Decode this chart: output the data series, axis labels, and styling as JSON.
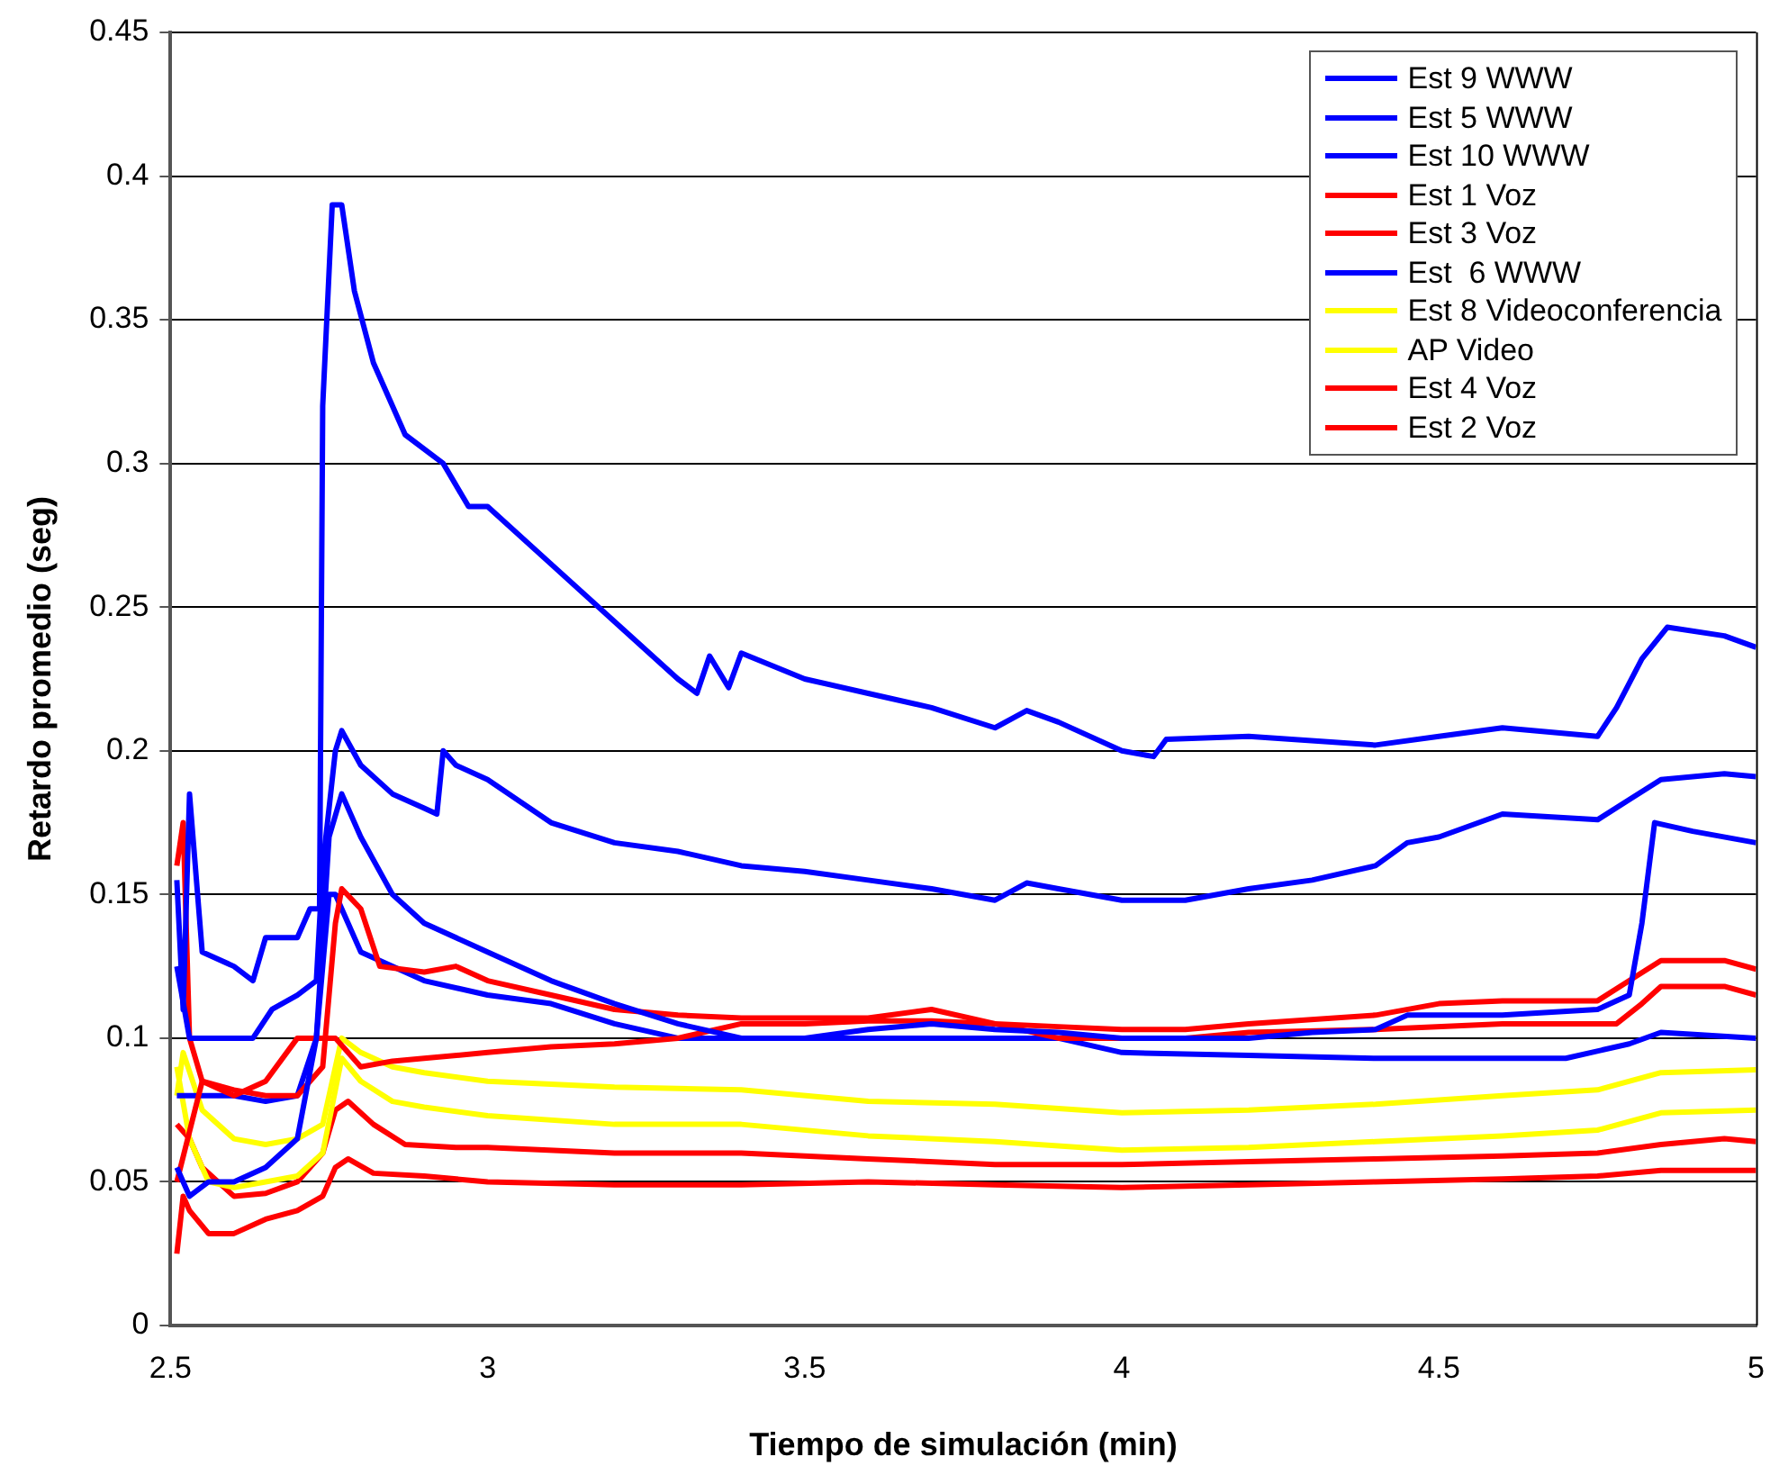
{
  "chart_data": {
    "type": "line",
    "xlabel": "Tiempo de simulación (min)",
    "ylabel": "Retardo promedio (seg)",
    "xlim": [
      2.5,
      5
    ],
    "xticks": [
      2.5,
      3,
      3.5,
      4,
      4.5,
      5
    ],
    "ylim": [
      0,
      0.45
    ],
    "yticks": [
      0,
      0.05,
      0.1,
      0.15,
      0.2,
      0.25,
      0.3,
      0.35,
      0.4,
      0.45
    ],
    "grid": "y",
    "legend": "top right",
    "marker": "none",
    "line_style": "solid",
    "series": [
      {
        "name": "Est 9 WWW",
        "color": "#0000ff",
        "x": [
          2.51,
          2.52,
          2.53,
          2.55,
          2.6,
          2.63,
          2.65,
          2.7,
          2.72,
          2.735,
          2.74,
          2.755,
          2.77,
          2.79,
          2.82,
          2.87,
          2.93,
          2.97,
          3.0,
          3.1,
          3.2,
          3.3,
          3.33,
          3.35,
          3.38,
          3.4,
          3.5,
          3.6,
          3.7,
          3.8,
          3.85,
          3.9,
          4.0,
          4.05,
          4.07,
          4.2,
          4.4,
          4.5,
          4.6,
          4.75,
          4.78,
          4.82,
          4.86,
          4.95,
          5
        ],
        "values": [
          0.155,
          0.11,
          0.185,
          0.13,
          0.125,
          0.12,
          0.135,
          0.135,
          0.145,
          0.145,
          0.32,
          0.39,
          0.39,
          0.36,
          0.335,
          0.31,
          0.3,
          0.285,
          0.285,
          0.265,
          0.245,
          0.225,
          0.22,
          0.233,
          0.222,
          0.234,
          0.225,
          0.22,
          0.215,
          0.208,
          0.214,
          0.21,
          0.2,
          0.198,
          0.204,
          0.205,
          0.202,
          0.205,
          0.208,
          0.205,
          0.215,
          0.232,
          0.243,
          0.24,
          0.236
        ]
      },
      {
        "name": "Est 5 WWW",
        "color": "#0000ff",
        "x": [
          2.51,
          2.53,
          2.56,
          2.6,
          2.63,
          2.66,
          2.7,
          2.73,
          2.74,
          2.76,
          2.77,
          2.8,
          2.85,
          2.9,
          2.92,
          2.93,
          2.95,
          3.0,
          3.1,
          3.2,
          3.3,
          3.4,
          3.5,
          3.6,
          3.7,
          3.8,
          3.85,
          3.9,
          4.0,
          4.1,
          4.2,
          4.3,
          4.4,
          4.45,
          4.5,
          4.6,
          4.75,
          4.8,
          4.85,
          4.95,
          5
        ],
        "values": [
          0.125,
          0.1,
          0.1,
          0.1,
          0.1,
          0.11,
          0.115,
          0.12,
          0.16,
          0.2,
          0.207,
          0.195,
          0.185,
          0.18,
          0.178,
          0.2,
          0.195,
          0.19,
          0.175,
          0.168,
          0.165,
          0.16,
          0.158,
          0.155,
          0.152,
          0.148,
          0.154,
          0.152,
          0.148,
          0.148,
          0.152,
          0.155,
          0.16,
          0.168,
          0.17,
          0.178,
          0.176,
          0.183,
          0.19,
          0.192,
          0.191
        ]
      },
      {
        "name": "Est 10 WWW",
        "color": "#0000ff",
        "x": [
          2.51,
          2.53,
          2.56,
          2.6,
          2.65,
          2.7,
          2.73,
          2.75,
          2.77,
          2.8,
          2.85,
          2.9,
          3.0,
          3.1,
          3.2,
          3.3,
          3.4,
          3.5,
          3.6,
          3.7,
          3.8,
          3.9,
          4.0,
          4.1,
          4.2,
          4.3,
          4.4,
          4.45,
          4.6,
          4.75,
          4.8,
          4.82,
          4.84,
          4.9,
          5
        ],
        "values": [
          0.055,
          0.045,
          0.05,
          0.05,
          0.055,
          0.065,
          0.1,
          0.17,
          0.185,
          0.17,
          0.15,
          0.14,
          0.13,
          0.12,
          0.112,
          0.105,
          0.1,
          0.1,
          0.103,
          0.105,
          0.103,
          0.102,
          0.1,
          0.1,
          0.1,
          0.102,
          0.103,
          0.108,
          0.108,
          0.11,
          0.115,
          0.14,
          0.175,
          0.172,
          0.168
        ]
      },
      {
        "name": "Est 1 Voz",
        "color": "#ff0000",
        "x": [
          2.51,
          2.52,
          2.53,
          2.55,
          2.6,
          2.65,
          2.7,
          2.74,
          2.76,
          2.77,
          2.8,
          2.83,
          2.9,
          2.95,
          3.0,
          3.1,
          3.2,
          3.3,
          3.4,
          3.6,
          3.7,
          3.8,
          3.9,
          4.0,
          4.1,
          4.2,
          4.4,
          4.5,
          4.6,
          4.75,
          4.8,
          4.85,
          4.95,
          5
        ],
        "values": [
          0.16,
          0.175,
          0.1,
          0.085,
          0.082,
          0.08,
          0.08,
          0.09,
          0.14,
          0.152,
          0.145,
          0.125,
          0.123,
          0.125,
          0.12,
          0.115,
          0.11,
          0.108,
          0.107,
          0.107,
          0.11,
          0.105,
          0.104,
          0.103,
          0.103,
          0.105,
          0.108,
          0.112,
          0.113,
          0.113,
          0.12,
          0.127,
          0.127,
          0.124
        ]
      },
      {
        "name": "Est 3 Voz",
        "color": "#ff0000",
        "x": [
          2.51,
          2.55,
          2.6,
          2.65,
          2.7,
          2.74,
          2.76,
          2.8,
          2.85,
          2.9,
          3.0,
          3.1,
          3.2,
          3.3,
          3.4,
          3.5,
          3.6,
          3.7,
          3.8,
          3.9,
          4.0,
          4.1,
          4.2,
          4.4,
          4.6,
          4.78,
          4.82,
          4.85,
          4.95,
          5
        ],
        "values": [
          0.05,
          0.085,
          0.08,
          0.085,
          0.1,
          0.1,
          0.1,
          0.09,
          0.092,
          0.093,
          0.095,
          0.097,
          0.098,
          0.1,
          0.105,
          0.105,
          0.106,
          0.106,
          0.105,
          0.1,
          0.1,
          0.1,
          0.102,
          0.103,
          0.105,
          0.105,
          0.112,
          0.118,
          0.118,
          0.115
        ]
      },
      {
        "name": "Est  6 WWW",
        "color": "#0000ff",
        "x": [
          2.51,
          2.55,
          2.6,
          2.65,
          2.7,
          2.73,
          2.75,
          2.76,
          2.8,
          2.9,
          3.0,
          3.1,
          3.2,
          3.3,
          3.4,
          3.5,
          3.6,
          3.7,
          3.8,
          3.9,
          4.0,
          4.2,
          4.4,
          4.6,
          4.7,
          4.8,
          4.85,
          5
        ],
        "values": [
          0.08,
          0.08,
          0.08,
          0.078,
          0.08,
          0.1,
          0.15,
          0.15,
          0.13,
          0.12,
          0.115,
          0.112,
          0.105,
          0.1,
          0.1,
          0.1,
          0.1,
          0.1,
          0.1,
          0.1,
          0.095,
          0.094,
          0.093,
          0.093,
          0.093,
          0.098,
          0.102,
          0.1
        ]
      },
      {
        "name": "Est 8 Videoconferencia",
        "color": "#ffff00",
        "x": [
          2.51,
          2.52,
          2.55,
          2.6,
          2.65,
          2.7,
          2.74,
          2.77,
          2.8,
          2.85,
          2.9,
          3.0,
          3.2,
          3.4,
          3.6,
          3.8,
          4.0,
          4.2,
          4.4,
          4.6,
          4.75,
          4.85,
          5
        ],
        "values": [
          0.08,
          0.095,
          0.075,
          0.065,
          0.063,
          0.065,
          0.07,
          0.1,
          0.095,
          0.09,
          0.088,
          0.085,
          0.083,
          0.082,
          0.078,
          0.077,
          0.074,
          0.075,
          0.077,
          0.08,
          0.082,
          0.088,
          0.089
        ]
      },
      {
        "name": "AP Video",
        "color": "#ffff00",
        "x": [
          2.51,
          2.53,
          2.56,
          2.6,
          2.65,
          2.7,
          2.74,
          2.77,
          2.8,
          2.85,
          2.9,
          3.0,
          3.2,
          3.4,
          3.6,
          3.8,
          4.0,
          4.2,
          4.4,
          4.6,
          4.75,
          4.85,
          5
        ],
        "values": [
          0.09,
          0.065,
          0.05,
          0.048,
          0.05,
          0.052,
          0.06,
          0.093,
          0.085,
          0.078,
          0.076,
          0.073,
          0.07,
          0.07,
          0.066,
          0.064,
          0.061,
          0.062,
          0.064,
          0.066,
          0.068,
          0.074,
          0.075
        ]
      },
      {
        "name": "Est 4 Voz",
        "color": "#ff0000",
        "x": [
          2.51,
          2.53,
          2.55,
          2.6,
          2.65,
          2.7,
          2.74,
          2.76,
          2.78,
          2.82,
          2.87,
          2.95,
          3.0,
          3.2,
          3.4,
          3.6,
          3.8,
          4.0,
          4.2,
          4.4,
          4.6,
          4.75,
          4.85,
          4.95,
          5
        ],
        "values": [
          0.07,
          0.065,
          0.055,
          0.045,
          0.046,
          0.05,
          0.06,
          0.075,
          0.078,
          0.07,
          0.063,
          0.062,
          0.062,
          0.06,
          0.06,
          0.058,
          0.056,
          0.056,
          0.057,
          0.058,
          0.059,
          0.06,
          0.063,
          0.065,
          0.064
        ]
      },
      {
        "name": "Est 2 Voz",
        "color": "#ff0000",
        "x": [
          2.51,
          2.52,
          2.53,
          2.56,
          2.6,
          2.65,
          2.7,
          2.74,
          2.76,
          2.78,
          2.82,
          2.9,
          3.0,
          3.2,
          3.4,
          3.6,
          3.8,
          4.0,
          4.2,
          4.4,
          4.6,
          4.75,
          4.85,
          5
        ],
        "values": [
          0.025,
          0.045,
          0.04,
          0.032,
          0.032,
          0.037,
          0.04,
          0.045,
          0.055,
          0.058,
          0.053,
          0.052,
          0.05,
          0.049,
          0.049,
          0.05,
          0.049,
          0.048,
          0.049,
          0.05,
          0.051,
          0.052,
          0.054,
          0.054
        ]
      }
    ]
  }
}
